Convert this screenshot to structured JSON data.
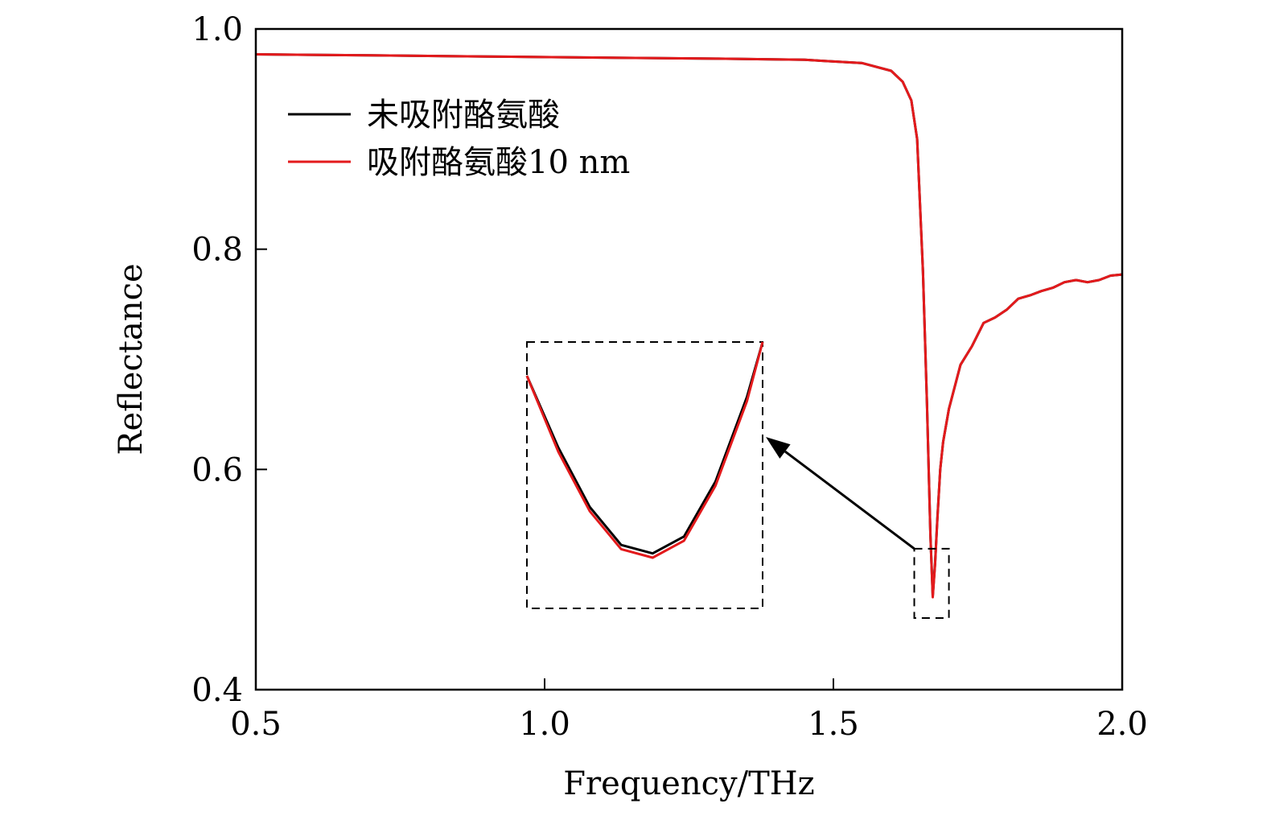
{
  "chart_data": {
    "type": "line",
    "title": "",
    "xlabel": "Frequency/THz",
    "ylabel": "Reflectance",
    "xlim": [
      0.5,
      2.0
    ],
    "ylim": [
      0.4,
      1.0
    ],
    "xticks": [
      0.5,
      1.0,
      1.5,
      2.0
    ],
    "xtick_labels": [
      "0.5",
      "1.0",
      "1.5",
      "2.0"
    ],
    "yticks": [
      0.4,
      0.6,
      0.8,
      1.0
    ],
    "ytick_labels": [
      "0.4",
      "0.6",
      "0.8",
      "1.0"
    ],
    "grid": false,
    "legend": {
      "placement": "top-left"
    },
    "series": [
      {
        "name": "未吸附酪氨酸",
        "color": "#000000",
        "x": [
          0.5,
          0.7,
          0.9,
          1.1,
          1.3,
          1.45,
          1.55,
          1.6,
          1.62,
          1.635,
          1.645,
          1.655,
          1.662,
          1.668,
          1.672,
          1.676,
          1.68,
          1.685,
          1.69,
          1.7,
          1.72,
          1.74,
          1.76,
          1.78,
          1.8,
          1.82,
          1.84,
          1.86,
          1.88,
          1.9,
          1.92,
          1.94,
          1.96,
          1.98,
          2.0
        ],
        "y": [
          0.977,
          0.976,
          0.975,
          0.974,
          0.973,
          0.972,
          0.969,
          0.962,
          0.952,
          0.935,
          0.9,
          0.78,
          0.66,
          0.54,
          0.485,
          0.515,
          0.555,
          0.6,
          0.625,
          0.655,
          0.695,
          0.712,
          0.733,
          0.738,
          0.745,
          0.755,
          0.758,
          0.762,
          0.765,
          0.77,
          0.772,
          0.77,
          0.772,
          0.776,
          0.777
        ]
      },
      {
        "name": "吸附酪氨酸10 nm",
        "color": "#e31a1c",
        "x": [
          0.5,
          0.7,
          0.9,
          1.1,
          1.3,
          1.45,
          1.55,
          1.6,
          1.62,
          1.635,
          1.645,
          1.655,
          1.662,
          1.668,
          1.672,
          1.676,
          1.68,
          1.685,
          1.69,
          1.7,
          1.72,
          1.74,
          1.76,
          1.78,
          1.8,
          1.82,
          1.84,
          1.86,
          1.88,
          1.9,
          1.92,
          1.94,
          1.96,
          1.98,
          2.0
        ],
        "y": [
          0.977,
          0.976,
          0.975,
          0.974,
          0.973,
          0.972,
          0.969,
          0.962,
          0.952,
          0.935,
          0.9,
          0.78,
          0.66,
          0.54,
          0.484,
          0.514,
          0.554,
          0.6,
          0.625,
          0.655,
          0.695,
          0.712,
          0.733,
          0.738,
          0.745,
          0.755,
          0.758,
          0.762,
          0.765,
          0.77,
          0.772,
          0.77,
          0.772,
          0.776,
          0.777
        ]
      }
    ],
    "zoom_region": {
      "x": [
        1.64,
        1.7
      ],
      "y": [
        0.465,
        0.528
      ]
    },
    "inset_curve": {
      "black": {
        "x": [
          1.64,
          1.648,
          1.656,
          1.664,
          1.672,
          1.68,
          1.688,
          1.696,
          1.7
        ],
        "y": [
          0.52,
          0.503,
          0.489,
          0.48,
          0.478,
          0.482,
          0.495,
          0.515,
          0.528
        ]
      },
      "red": {
        "x": [
          1.64,
          1.648,
          1.656,
          1.664,
          1.672,
          1.68,
          1.688,
          1.696,
          1.7
        ],
        "y": [
          0.52,
          0.502,
          0.488,
          0.479,
          0.477,
          0.481,
          0.494,
          0.514,
          0.528
        ]
      }
    }
  }
}
